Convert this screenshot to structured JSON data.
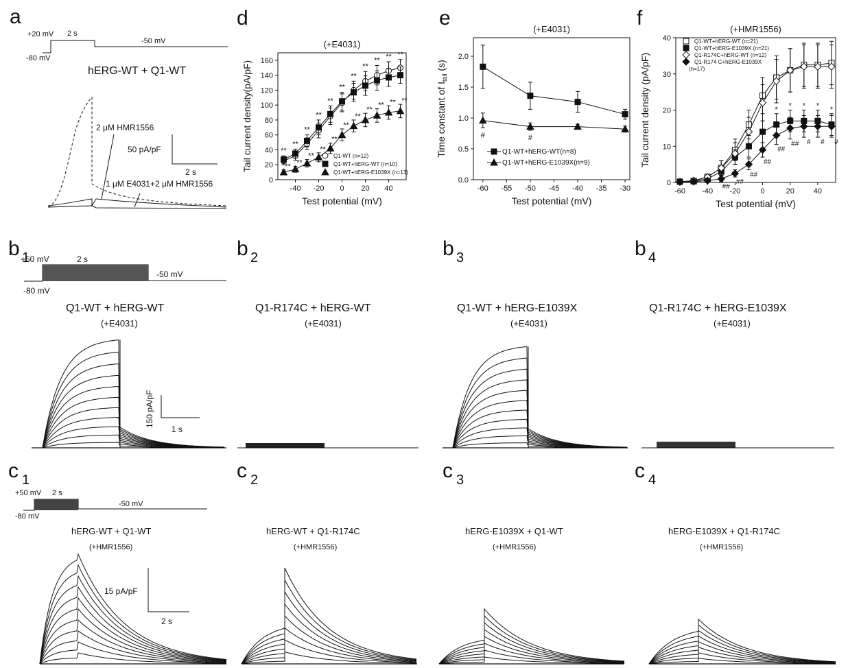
{
  "panels": {
    "a": {
      "letter": "a",
      "protocol": {
        "v1": "+20 mV",
        "t": "2 s",
        "v2": "-50 mV",
        "hold": "-80 mV"
      },
      "title": "hERG-WT + Q1-WT",
      "ann_hmr": "2 μM HMR1556",
      "ann_combo": "1 μM E4031+2 μM HMR1556",
      "scale_y": "50 pA/pF",
      "scale_x": "2 s"
    },
    "b1": {
      "letter": "b",
      "sub": "1",
      "title": "Q1-WT + hERG-WT",
      "cond": "(+E4031)",
      "protocol": {
        "v1": "+50 mV",
        "t": "2 s",
        "v2": "-50 mV",
        "hold": "-80 mV"
      },
      "scale_y": "150 pA/pF",
      "scale_x": "1 s"
    },
    "b2": {
      "letter": "b",
      "sub": "2",
      "title": "Q1-R174C + hERG-WT",
      "cond": "(+E4031)"
    },
    "b3": {
      "letter": "b",
      "sub": "3",
      "title": "Q1-WT + hERG-E1039X",
      "cond": "(+E4031)"
    },
    "b4": {
      "letter": "b",
      "sub": "4",
      "title": "Q1-R174C + hERG-E1039X",
      "cond": "(+E4031)"
    },
    "c1": {
      "letter": "c",
      "sub": "1",
      "title": "hERG-WT + Q1-WT",
      "cond": "(+HMR1556)",
      "protocol": {
        "v1": "+50 mV",
        "t": "2 s",
        "v2": "-50 mV",
        "hold": "-80 mV"
      },
      "scale_y": "15 pA/pF",
      "scale_x": "2 s"
    },
    "c2": {
      "letter": "c",
      "sub": "2",
      "title": "hERG-WT + Q1-R174C",
      "cond": "(+HMR1556)"
    },
    "c3": {
      "letter": "c",
      "sub": "3",
      "title": "hERG-E1039X + Q1-WT",
      "cond": "(+HMR1556)"
    },
    "c4": {
      "letter": "c",
      "sub": "4",
      "title": "hERG-E1039X + Q1-R174C",
      "cond": "(+HMR1556)"
    }
  },
  "chart_data": [
    {
      "id": "d",
      "letter": "d",
      "type": "line",
      "title": "(+E4031)",
      "xlabel": "Test potential (mV)",
      "ylabel": "Tail current density(pA/pF)",
      "xlim": [
        -55,
        55
      ],
      "ylim": [
        0,
        170
      ],
      "xticks": [
        -40,
        -20,
        0,
        20,
        40
      ],
      "yticks": [
        0,
        20,
        40,
        60,
        80,
        100,
        120,
        140,
        160
      ],
      "x": [
        -50,
        -40,
        -30,
        -20,
        -10,
        0,
        10,
        20,
        30,
        40,
        50
      ],
      "series": [
        {
          "name": "Q1-WT (n=12)",
          "marker": "circle-open",
          "values": [
            25,
            32,
            48,
            66,
            85,
            103,
            120,
            132,
            140,
            146,
            150
          ],
          "err": [
            5,
            6,
            8,
            10,
            11,
            12,
            12,
            13,
            13,
            12,
            11
          ]
        },
        {
          "name": "Q1-WT+hERG-WT (n=10)",
          "marker": "square",
          "values": [
            27,
            35,
            52,
            70,
            88,
            105,
            117,
            126,
            133,
            137,
            140
          ],
          "err": [
            5,
            6,
            8,
            10,
            11,
            12,
            12,
            13,
            13,
            12,
            11
          ]
        },
        {
          "name": "Q1-WT+hERG-E1039X (n=13)",
          "marker": "triangle",
          "values": [
            10,
            14,
            22,
            30,
            42,
            60,
            72,
            80,
            86,
            90,
            92
          ],
          "err": [
            3,
            4,
            5,
            6,
            7,
            8,
            8,
            9,
            9,
            9,
            9
          ]
        }
      ],
      "annotations": {
        "sig_upper": "**",
        "sig_lower": "**"
      }
    },
    {
      "id": "e",
      "letter": "e",
      "type": "line",
      "title": "(+E4031)",
      "xlabel": "Test potential (mV)",
      "ylabel_prefix": "Time constant of I",
      "ylabel_sub": "tail",
      "ylabel_suffix": " (s)",
      "xlim": [
        -62,
        -29
      ],
      "ylim": [
        0,
        2.3
      ],
      "xticks": [
        -60,
        -55,
        -50,
        -45,
        -40,
        -35,
        -30
      ],
      "yticks": [
        0.0,
        0.5,
        1.0,
        1.5,
        2.0
      ],
      "x": [
        -60,
        -50,
        -40,
        -30
      ],
      "series": [
        {
          "name": "Q1-WT+hERG-WT(n=8)",
          "marker": "square",
          "values": [
            1.83,
            1.36,
            1.26,
            1.06
          ],
          "err": [
            0.35,
            0.22,
            0.17,
            0.08
          ]
        },
        {
          "name": "Q1-WT+hERG-E1039X(n=9)",
          "marker": "triangle",
          "values": [
            0.96,
            0.86,
            0.86,
            0.82
          ],
          "err": [
            0.12,
            0.06,
            0.04,
            0.05
          ]
        }
      ],
      "annotations": {
        "hash": "#"
      }
    },
    {
      "id": "f",
      "letter": "f",
      "type": "line",
      "title": "(+HMR1556)",
      "xlabel": "Test potential (mV)",
      "ylabel": "Tail current density (pA/pF)",
      "xlim": [
        -63,
        53
      ],
      "ylim": [
        0,
        40
      ],
      "xticks": [
        -60,
        -40,
        -20,
        0,
        20,
        40
      ],
      "yticks": [
        0,
        10,
        20,
        30,
        40
      ],
      "x": [
        -60,
        -50,
        -40,
        -30,
        -20,
        -10,
        0,
        10,
        20,
        30,
        40,
        50
      ],
      "series": [
        {
          "name": "Q1-WT+hERG-WT (n=21)",
          "marker": "square-open",
          "values": [
            0.2,
            0.4,
            1.5,
            4,
            9,
            16,
            24,
            29,
            31,
            32.5,
            32.5,
            33
          ],
          "err": [
            0.3,
            0.4,
            0.8,
            2,
            3,
            4,
            5,
            6,
            6,
            6,
            6,
            6
          ]
        },
        {
          "name": "Q1-WT+hERG-E1039X (n=21)",
          "marker": "square",
          "values": [
            0.2,
            0.3,
            1.0,
            3,
            7,
            10,
            14,
            16,
            17,
            17,
            17,
            16
          ],
          "err": [
            0.3,
            0.4,
            0.6,
            1.5,
            2,
            3,
            3,
            3,
            3,
            3,
            3,
            3
          ]
        },
        {
          "name": "Q1-R174C+hERG-WT (n=12)",
          "marker": "diamond-open",
          "values": [
            0.2,
            0.5,
            1.5,
            4,
            8,
            14,
            22,
            28,
            31,
            32,
            32,
            32
          ],
          "err": [
            0.3,
            0.4,
            0.8,
            2,
            3,
            4,
            5,
            6,
            6,
            6,
            6,
            6
          ]
        },
        {
          "name": "Q1-R174 C+hERG-E1039X",
          "marker": "diamond",
          "values": [
            0.1,
            0.2,
            0.5,
            1,
            2.5,
            5,
            9,
            13,
            15,
            15.5,
            15.5,
            15.5
          ],
          "err": [
            0.2,
            0.3,
            0.4,
            0.8,
            1,
            1.5,
            2,
            2.5,
            3,
            3,
            3,
            3
          ]
        }
      ],
      "legend_extra": "(n=17)",
      "annotations": {
        "star": "*",
        "hash": "#",
        "hash2": "##"
      }
    }
  ]
}
